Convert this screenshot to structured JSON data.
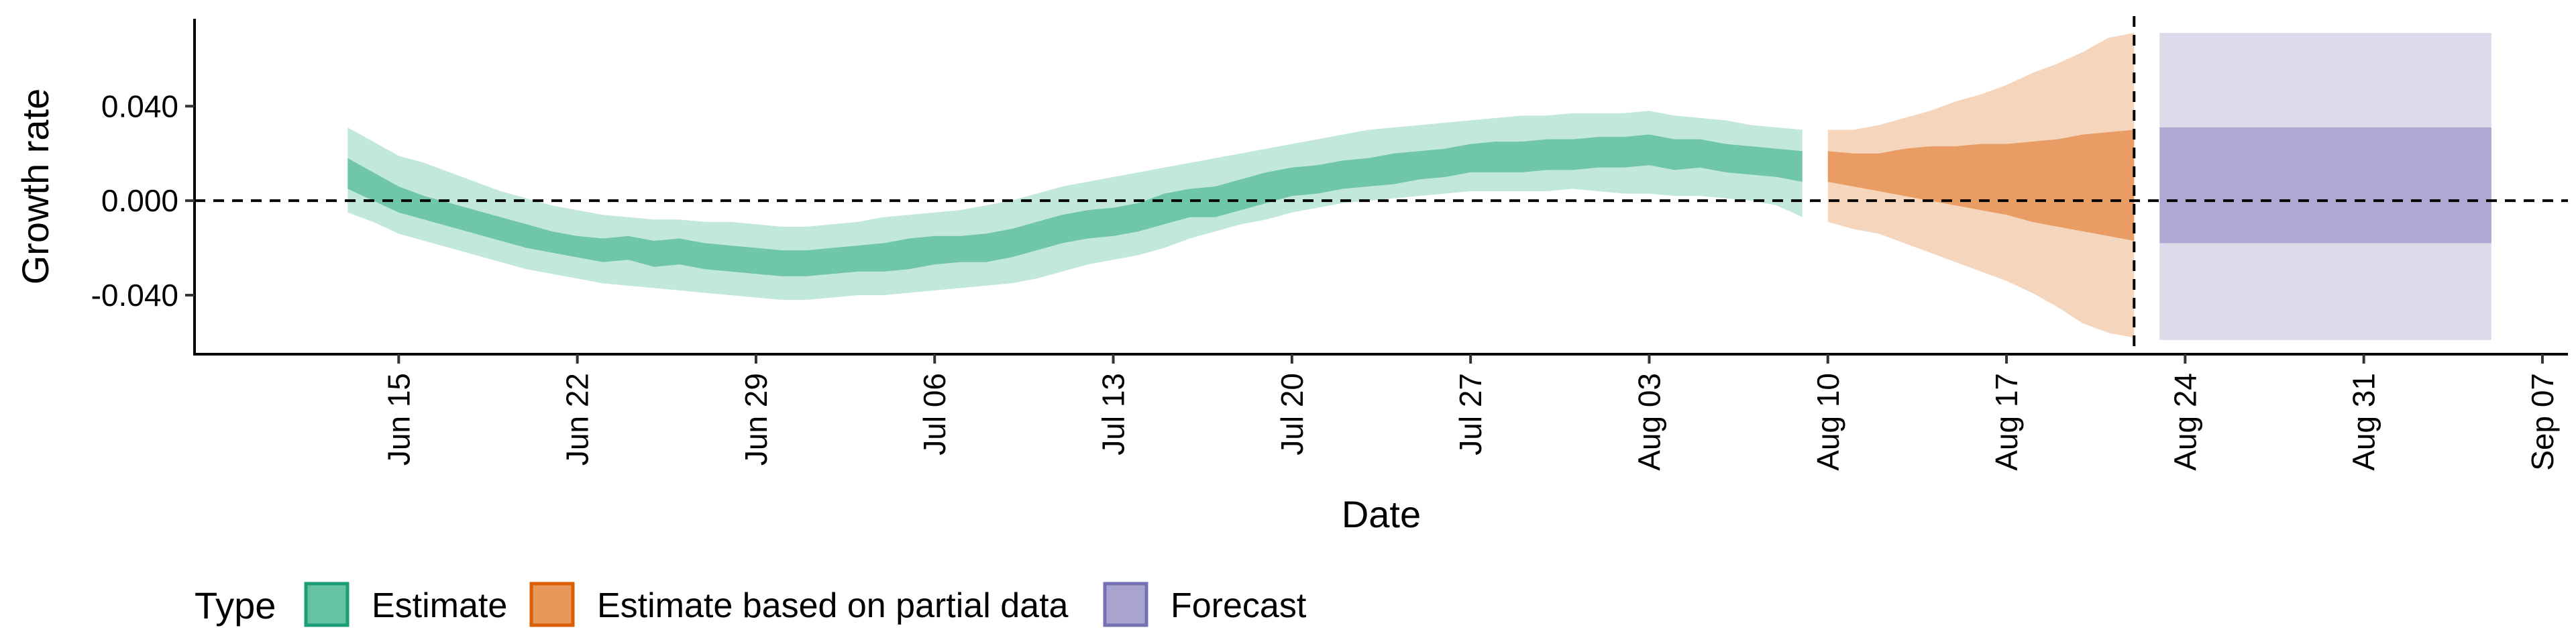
{
  "chart_data": {
    "type": "area",
    "title": "",
    "xlabel": "Date",
    "ylabel": "Growth rate",
    "x_type": "date",
    "xlim": [
      "2020-06-07",
      "2020-09-08"
    ],
    "ylim": [
      -0.065,
      0.077
    ],
    "y_ticks": [
      -0.04,
      0.0,
      0.04
    ],
    "y_tick_labels": [
      "-0.040",
      "0.000",
      "0.040"
    ],
    "x_ticks": [
      "2020-06-15",
      "2020-06-22",
      "2020-06-29",
      "2020-07-06",
      "2020-07-13",
      "2020-07-20",
      "2020-07-27",
      "2020-08-03",
      "2020-08-10",
      "2020-08-17",
      "2020-08-24",
      "2020-08-31",
      "2020-09-07"
    ],
    "x_tick_labels": [
      "Jun 15",
      "Jun 22",
      "Jun 29",
      "Jul 06",
      "Jul 13",
      "Jul 20",
      "Jul 27",
      "Aug 03",
      "Aug 10",
      "Aug 17",
      "Aug 24",
      "Aug 31",
      "Sep 07"
    ],
    "reference_lines": {
      "y_zero": 0.0,
      "forecast_date": "2020-08-22"
    },
    "grid": false,
    "legend": {
      "position": "bottom",
      "title": "Type",
      "entries": [
        {
          "label": "Estimate",
          "fill": "#66c2a5",
          "stroke": "#1b9e77"
        },
        {
          "label": "Estimate based on partial data",
          "fill": "#e8975a",
          "stroke": "#d95f02"
        },
        {
          "label": "Forecast",
          "fill": "#a9a3d0",
          "stroke": "#7570b3"
        }
      ]
    },
    "series": [
      {
        "type": "Estimate",
        "color": "#1b9e77",
        "x": [
          "2020-06-13",
          "2020-06-14",
          "2020-06-15",
          "2020-06-16",
          "2020-06-17",
          "2020-06-18",
          "2020-06-19",
          "2020-06-20",
          "2020-06-21",
          "2020-06-22",
          "2020-06-23",
          "2020-06-24",
          "2020-06-25",
          "2020-06-26",
          "2020-06-27",
          "2020-06-28",
          "2020-06-29",
          "2020-06-30",
          "2020-07-01",
          "2020-07-02",
          "2020-07-03",
          "2020-07-04",
          "2020-07-05",
          "2020-07-06",
          "2020-07-07",
          "2020-07-08",
          "2020-07-09",
          "2020-07-10",
          "2020-07-11",
          "2020-07-12",
          "2020-07-13",
          "2020-07-14",
          "2020-07-15",
          "2020-07-16",
          "2020-07-17",
          "2020-07-18",
          "2020-07-19",
          "2020-07-20",
          "2020-07-21",
          "2020-07-22",
          "2020-07-23",
          "2020-07-24",
          "2020-07-25",
          "2020-07-26",
          "2020-07-27",
          "2020-07-28",
          "2020-07-29",
          "2020-07-30",
          "2020-07-31",
          "2020-08-01",
          "2020-08-02",
          "2020-08-03",
          "2020-08-04",
          "2020-08-05",
          "2020-08-06",
          "2020-08-07",
          "2020-08-08",
          "2020-08-09"
        ],
        "lower_90": [
          -0.005,
          -0.009,
          -0.014,
          -0.017,
          -0.02,
          -0.023,
          -0.026,
          -0.029,
          -0.031,
          -0.033,
          -0.035,
          -0.036,
          -0.037,
          -0.038,
          -0.039,
          -0.04,
          -0.041,
          -0.042,
          -0.042,
          -0.041,
          -0.04,
          -0.04,
          -0.039,
          -0.038,
          -0.037,
          -0.036,
          -0.035,
          -0.033,
          -0.03,
          -0.027,
          -0.025,
          -0.023,
          -0.02,
          -0.016,
          -0.013,
          -0.01,
          -0.008,
          -0.005,
          -0.003,
          -0.001,
          0.0,
          0.001,
          0.002,
          0.003,
          0.004,
          0.004,
          0.004,
          0.004,
          0.005,
          0.004,
          0.003,
          0.003,
          0.002,
          0.002,
          0.001,
          0.0,
          -0.002,
          -0.007
        ],
        "lower_50": [
          0.005,
          0.0,
          -0.005,
          -0.008,
          -0.011,
          -0.014,
          -0.017,
          -0.02,
          -0.022,
          -0.024,
          -0.026,
          -0.025,
          -0.028,
          -0.027,
          -0.029,
          -0.03,
          -0.031,
          -0.032,
          -0.032,
          -0.031,
          -0.03,
          -0.03,
          -0.029,
          -0.027,
          -0.026,
          -0.026,
          -0.024,
          -0.021,
          -0.018,
          -0.016,
          -0.015,
          -0.013,
          -0.01,
          -0.007,
          -0.007,
          -0.004,
          -0.001,
          0.002,
          0.003,
          0.005,
          0.006,
          0.007,
          0.009,
          0.01,
          0.012,
          0.012,
          0.012,
          0.013,
          0.013,
          0.014,
          0.014,
          0.015,
          0.013,
          0.014,
          0.012,
          0.011,
          0.01,
          0.008
        ],
        "upper_50": [
          0.018,
          0.012,
          0.006,
          0.002,
          -0.001,
          -0.004,
          -0.007,
          -0.01,
          -0.013,
          -0.015,
          -0.016,
          -0.015,
          -0.017,
          -0.016,
          -0.018,
          -0.019,
          -0.02,
          -0.021,
          -0.021,
          -0.02,
          -0.019,
          -0.018,
          -0.016,
          -0.015,
          -0.015,
          -0.014,
          -0.012,
          -0.009,
          -0.006,
          -0.004,
          -0.003,
          -0.001,
          0.003,
          0.005,
          0.006,
          0.009,
          0.012,
          0.014,
          0.015,
          0.017,
          0.018,
          0.02,
          0.021,
          0.022,
          0.024,
          0.025,
          0.025,
          0.026,
          0.026,
          0.027,
          0.027,
          0.028,
          0.026,
          0.026,
          0.024,
          0.023,
          0.022,
          0.021
        ],
        "upper_90": [
          0.031,
          0.025,
          0.019,
          0.016,
          0.012,
          0.008,
          0.004,
          0.001,
          -0.002,
          -0.004,
          -0.006,
          -0.007,
          -0.008,
          -0.008,
          -0.009,
          -0.009,
          -0.01,
          -0.011,
          -0.011,
          -0.01,
          -0.009,
          -0.007,
          -0.006,
          -0.005,
          -0.004,
          -0.002,
          0.0,
          0.003,
          0.006,
          0.008,
          0.01,
          0.012,
          0.014,
          0.016,
          0.018,
          0.02,
          0.022,
          0.024,
          0.026,
          0.028,
          0.03,
          0.031,
          0.032,
          0.033,
          0.034,
          0.035,
          0.036,
          0.036,
          0.037,
          0.037,
          0.037,
          0.038,
          0.036,
          0.035,
          0.034,
          0.032,
          0.031,
          0.03
        ]
      },
      {
        "type": "Estimate based on partial data",
        "color": "#d95f02",
        "x": [
          "2020-08-10",
          "2020-08-11",
          "2020-08-12",
          "2020-08-13",
          "2020-08-14",
          "2020-08-15",
          "2020-08-16",
          "2020-08-17",
          "2020-08-18",
          "2020-08-19",
          "2020-08-20",
          "2020-08-21",
          "2020-08-22"
        ],
        "lower_90": [
          -0.009,
          -0.012,
          -0.014,
          -0.018,
          -0.022,
          -0.026,
          -0.03,
          -0.034,
          -0.039,
          -0.045,
          -0.052,
          -0.056,
          -0.058
        ],
        "lower_50": [
          0.008,
          0.006,
          0.004,
          0.002,
          0.0,
          -0.002,
          -0.004,
          -0.006,
          -0.009,
          -0.011,
          -0.013,
          -0.015,
          -0.017
        ],
        "upper_50": [
          0.021,
          0.02,
          0.02,
          0.022,
          0.023,
          0.023,
          0.024,
          0.024,
          0.025,
          0.026,
          0.028,
          0.029,
          0.03
        ],
        "upper_90": [
          0.03,
          0.03,
          0.032,
          0.035,
          0.038,
          0.042,
          0.045,
          0.049,
          0.054,
          0.058,
          0.063,
          0.069,
          0.071
        ]
      },
      {
        "type": "Forecast",
        "color": "#7570b3",
        "x": [
          "2020-08-23",
          "2020-09-05"
        ],
        "lower_90": [
          -0.059,
          -0.059
        ],
        "lower_50": [
          -0.018,
          -0.018
        ],
        "upper_50": [
          0.031,
          0.031
        ],
        "upper_90": [
          0.071,
          0.071
        ]
      }
    ]
  }
}
